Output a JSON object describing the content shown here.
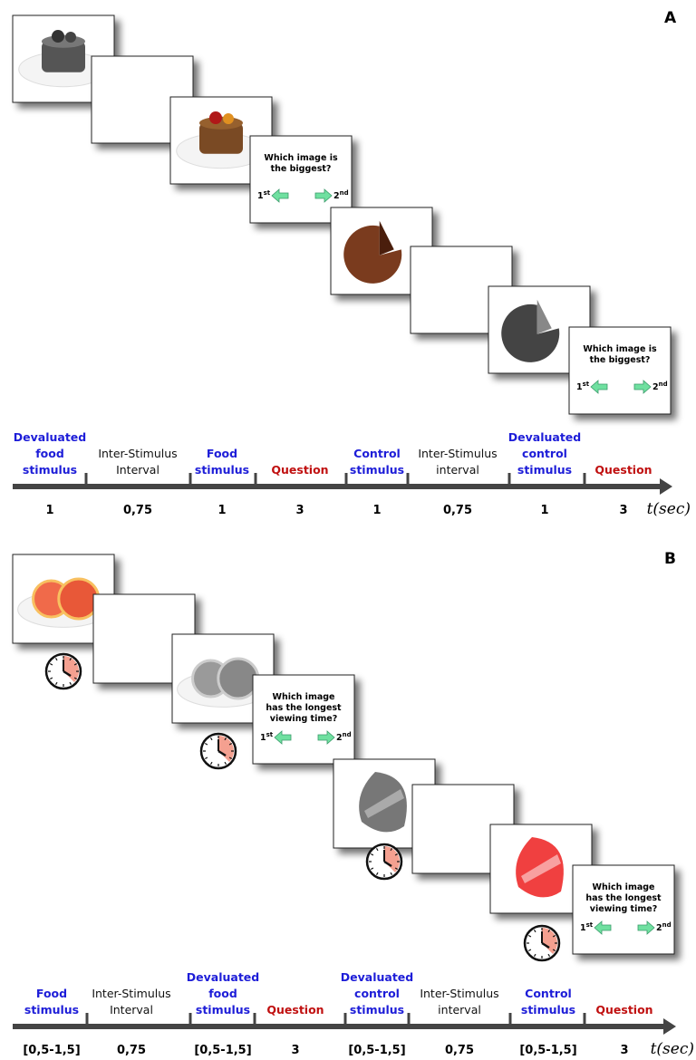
{
  "panel_a": {
    "label": "A",
    "question": {
      "lines": [
        "Which image is",
        "the biggest?"
      ],
      "first": {
        "num": "1",
        "sup": "st"
      },
      "second": {
        "num": "2",
        "sup": "nd"
      }
    },
    "timeline": {
      "axis_label": "t(sec)",
      "segments": [
        {
          "lines": [
            "Devaluated",
            "food",
            "stimulus"
          ],
          "color": "#1d1dd8",
          "duration": "1"
        },
        {
          "lines": [
            "Inter-Stimulus",
            "Interval"
          ],
          "color": "#111111",
          "duration": "0,75"
        },
        {
          "lines": [
            "Food",
            "stimulus"
          ],
          "color": "#1d1dd8",
          "duration": "1"
        },
        {
          "lines": [
            "Question"
          ],
          "color": "#c01010",
          "duration": "3"
        },
        {
          "lines": [
            "Control",
            "stimulus"
          ],
          "color": "#1d1dd8",
          "duration": "1"
        },
        {
          "lines": [
            "Inter-Stimulus",
            "interval"
          ],
          "color": "#111111",
          "duration": "0,75"
        },
        {
          "lines": [
            "Devaluated",
            "control",
            "stimulus"
          ],
          "color": "#1d1dd8",
          "duration": "1"
        },
        {
          "lines": [
            "Question"
          ],
          "color": "#c01010",
          "duration": "3"
        }
      ]
    }
  },
  "panel_b": {
    "label": "B",
    "question": {
      "lines": [
        "Which image",
        "has the longest",
        "viewing time?"
      ],
      "first": {
        "num": "1",
        "sup": "st"
      },
      "second": {
        "num": "2",
        "sup": "nd"
      }
    },
    "timeline": {
      "axis_label": "t(sec)",
      "segments": [
        {
          "lines": [
            "Food",
            "stimulus"
          ],
          "color": "#1d1dd8",
          "duration": "[0,5-1,5]"
        },
        {
          "lines": [
            "Inter-Stimulus",
            "Interval"
          ],
          "color": "#111111",
          "duration": "0,75"
        },
        {
          "lines": [
            "Devaluated",
            "food",
            "stimulus"
          ],
          "color": "#1d1dd8",
          "duration": "[0,5-1,5]"
        },
        {
          "lines": [
            "Question"
          ],
          "color": "#c01010",
          "duration": "3"
        },
        {
          "lines": [
            "Devaluated",
            "control",
            "stimulus"
          ],
          "color": "#1d1dd8",
          "duration": "[0,5-1,5]"
        },
        {
          "lines": [
            "Inter-Stimulus",
            "interval"
          ],
          "color": "#111111",
          "duration": "0,75"
        },
        {
          "lines": [
            "Control",
            "stimulus"
          ],
          "color": "#1d1dd8",
          "duration": "[0,5-1,5]"
        },
        {
          "lines": [
            "Question"
          ],
          "color": "#c01010",
          "duration": "3"
        }
      ]
    }
  }
}
